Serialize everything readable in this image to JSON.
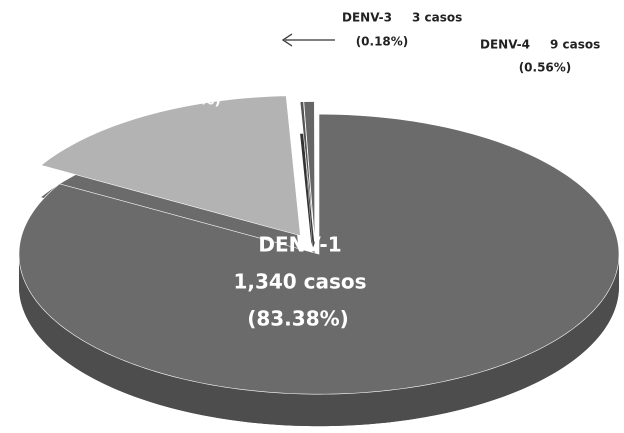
{
  "chart_data": {
    "type": "pie",
    "categories": [
      "DENV-1",
      "DENV-2",
      "DENV-3",
      "DENV-4"
    ],
    "values": [
      1340,
      255,
      3,
      9
    ],
    "value_labels": [
      "1,340 casos",
      "255 casos",
      "3 casos",
      "9 casos"
    ],
    "percentages": [
      83.38,
      15.86,
      0.18,
      0.56
    ],
    "percentage_labels": [
      "(83.38%)",
      "(15.86%)",
      "(0.18%)",
      "(0.56%)"
    ],
    "colors": [
      "#6b6b6b",
      "#b3b3b3",
      "#555555",
      "#666666"
    ]
  }
}
